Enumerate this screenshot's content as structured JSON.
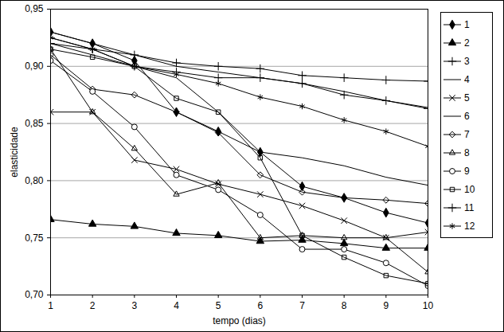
{
  "chart_data": {
    "type": "line",
    "x_label": "tempo (dias)",
    "y_label": "elasticidade",
    "x": [
      1,
      2,
      3,
      4,
      5,
      6,
      7,
      8,
      9,
      10
    ],
    "xlim": [
      1,
      10
    ],
    "xticks": [
      1,
      2,
      3,
      4,
      5,
      6,
      7,
      8,
      9,
      10
    ],
    "ylim": [
      0.7,
      0.95
    ],
    "yticks": [
      {
        "value": 0.7,
        "label": "0,70"
      },
      {
        "value": 0.75,
        "label": "0,75"
      },
      {
        "value": 0.8,
        "label": "0,80"
      },
      {
        "value": 0.85,
        "label": "0,85"
      },
      {
        "value": 0.9,
        "label": "0,90"
      },
      {
        "value": 0.95,
        "label": "0,95"
      }
    ],
    "grid": "y",
    "legend": "right",
    "series": [
      {
        "name": "1",
        "color": "#000000",
        "marker": "diamond",
        "values": [
          0.93,
          0.92,
          0.905,
          0.86,
          0.843,
          0.825,
          0.795,
          0.785,
          0.772,
          0.763
        ]
      },
      {
        "name": "2",
        "color": "#000000",
        "marker": "triangle",
        "values": [
          0.766,
          0.762,
          0.76,
          0.754,
          0.752,
          0.747,
          0.748,
          0.745,
          0.741,
          0.741
        ]
      },
      {
        "name": "3",
        "color": "#000000",
        "marker": "plus",
        "values": [
          0.925,
          0.915,
          0.91,
          0.903,
          0.9,
          0.898,
          0.892,
          0.89,
          0.888,
          0.887
        ]
      },
      {
        "name": "4",
        "color": "#000000",
        "marker": "none",
        "values": [
          0.93,
          0.92,
          0.91,
          0.9,
          0.895,
          0.89,
          0.885,
          0.878,
          0.87,
          0.864
        ]
      },
      {
        "name": "5",
        "color": "#000000",
        "marker": "times",
        "values": [
          0.86,
          0.86,
          0.818,
          0.81,
          0.797,
          0.788,
          0.778,
          0.765,
          0.75,
          0.755
        ]
      },
      {
        "name": "6",
        "color": "#000000",
        "marker": "none",
        "values": [
          0.92,
          0.91,
          0.9,
          0.89,
          0.86,
          0.825,
          0.82,
          0.813,
          0.803,
          0.796
        ]
      },
      {
        "name": "7",
        "color": "#000000",
        "marker": "open_diamond",
        "values": [
          0.91,
          0.88,
          0.875,
          0.86,
          0.842,
          0.805,
          0.79,
          0.785,
          0.783,
          0.78
        ]
      },
      {
        "name": "8",
        "color": "#000000",
        "marker": "open_triangle",
        "values": [
          0.915,
          0.86,
          0.828,
          0.788,
          0.798,
          0.75,
          0.752,
          0.75,
          0.75,
          0.72
        ]
      },
      {
        "name": "9",
        "color": "#000000",
        "marker": "open_circle",
        "values": [
          0.905,
          0.878,
          0.847,
          0.805,
          0.792,
          0.77,
          0.74,
          0.74,
          0.728,
          0.708
        ]
      },
      {
        "name": "10",
        "color": "#000000",
        "marker": "open_square",
        "values": [
          0.915,
          0.908,
          0.9,
          0.872,
          0.86,
          0.82,
          0.752,
          0.733,
          0.717,
          0.71
        ]
      },
      {
        "name": "11",
        "color": "#000000",
        "marker": "plus",
        "values": [
          0.92,
          0.915,
          0.9,
          0.895,
          0.89,
          0.89,
          0.885,
          0.875,
          0.87,
          0.863
        ]
      },
      {
        "name": "12",
        "color": "#000000",
        "marker": "asterisk",
        "values": [
          0.925,
          0.915,
          0.9,
          0.893,
          0.885,
          0.873,
          0.865,
          0.853,
          0.843,
          0.83
        ]
      }
    ]
  }
}
